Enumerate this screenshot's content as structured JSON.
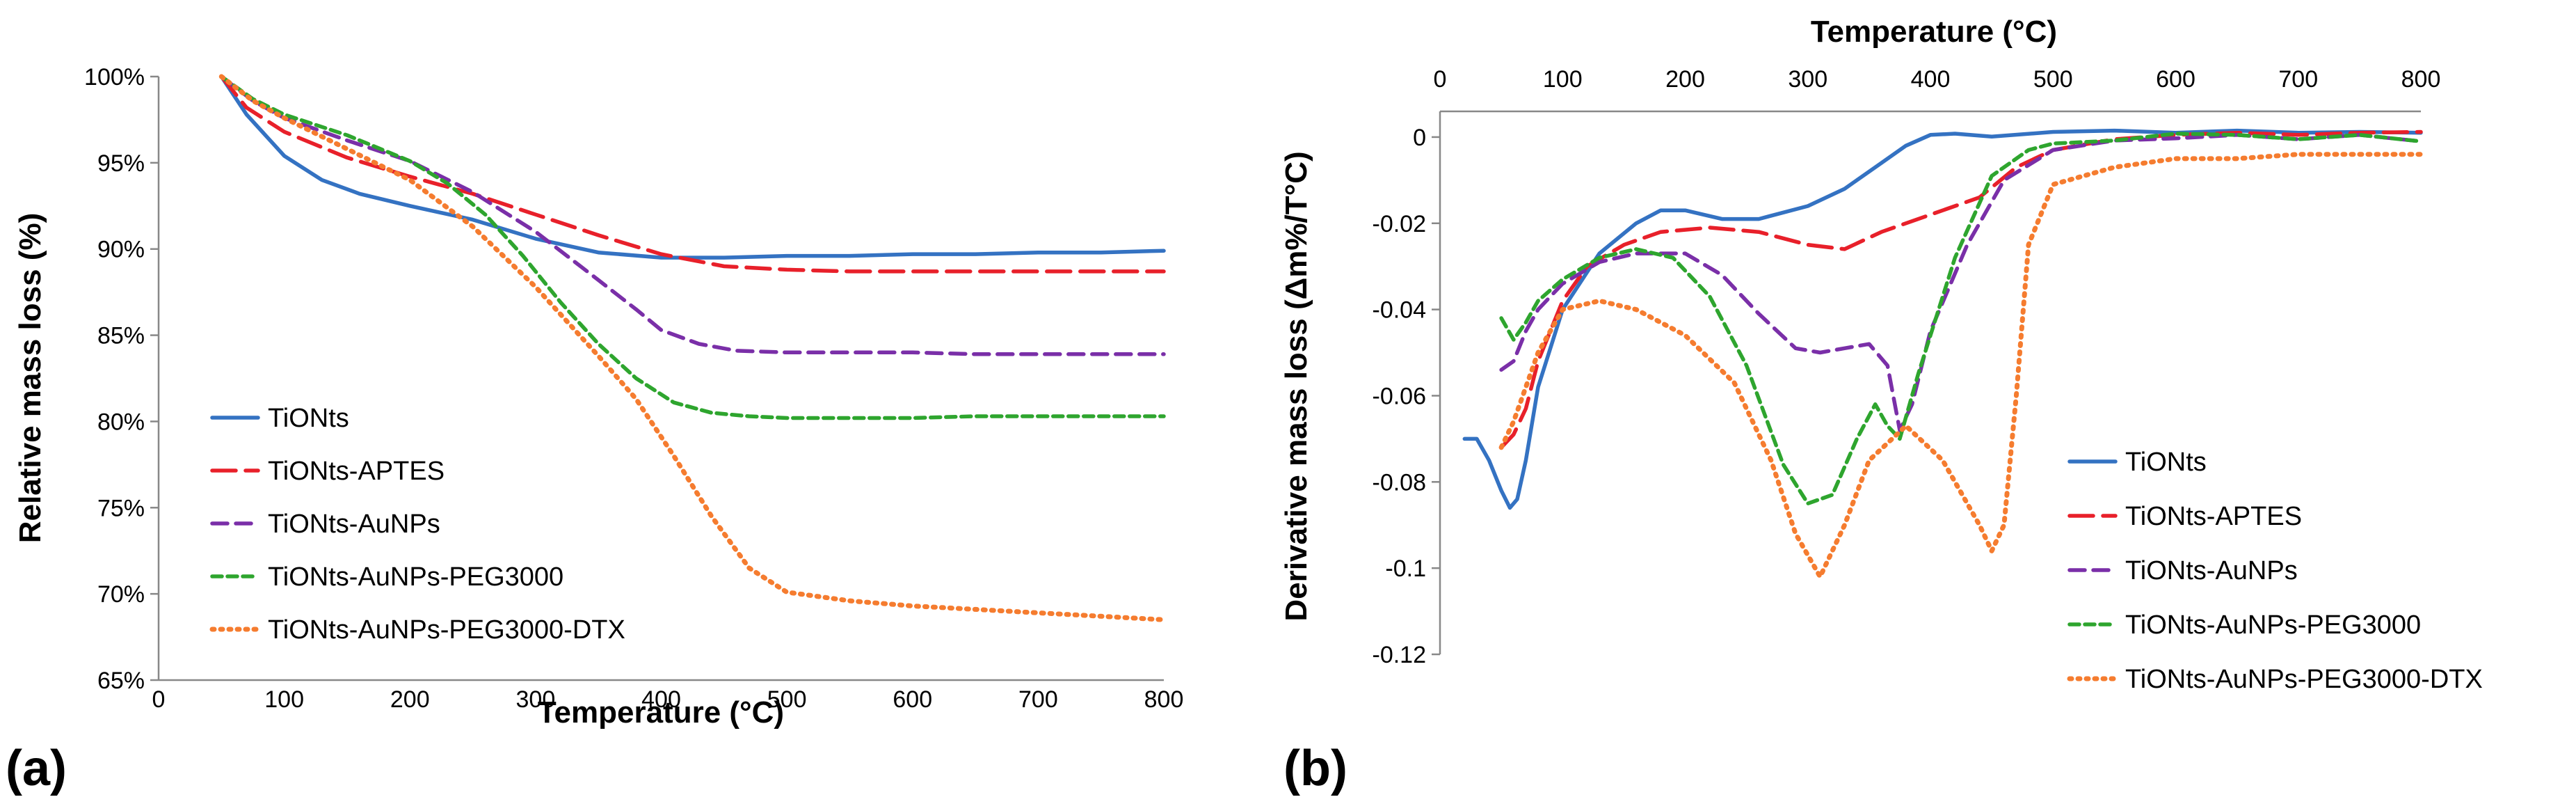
{
  "figure": {
    "panel_a_label": "(a)",
    "panel_b_label": "(b)"
  },
  "styles": {
    "TiONts": {
      "color": "#3472c2",
      "dash": "solid"
    },
    "TiONts-APTES": {
      "color": "#e8202a",
      "dash": "long-dash"
    },
    "TiONts-AuNPs": {
      "color": "#7a2fa8",
      "dash": "dash"
    },
    "TiONts-AuNPs-PEG3000": {
      "color": "#2ea52e",
      "dash": "short-dash"
    },
    "TiONts-AuNPs-PEG3000-DTX": {
      "color": "#f57c2f",
      "dash": "dot"
    }
  },
  "chart_data": [
    {
      "type": "line",
      "panel": "(a)",
      "title": "",
      "xlabel": "Temperature (°C)",
      "ylabel": "Relative mass loss (%)",
      "xlim": [
        0,
        800
      ],
      "ylim": [
        65,
        100
      ],
      "x_ticks": [
        "0",
        "100",
        "200",
        "300",
        "400",
        "500",
        "600",
        "700",
        "800"
      ],
      "y_ticks": [
        "65%",
        "70%",
        "75%",
        "80%",
        "85%",
        "90%",
        "95%",
        "100%"
      ],
      "grid": false,
      "legend_position": "bottom-left",
      "series": [
        {
          "name": "TiONts",
          "x": [
            50,
            70,
            100,
            130,
            160,
            200,
            250,
            300,
            350,
            400,
            450,
            500,
            550,
            600,
            650,
            700,
            750,
            800
          ],
          "y": [
            100,
            97.8,
            95.4,
            94.0,
            93.2,
            92.5,
            91.7,
            90.6,
            89.8,
            89.5,
            89.5,
            89.6,
            89.6,
            89.7,
            89.7,
            89.8,
            89.8,
            89.9
          ]
        },
        {
          "name": "TiONts-APTES",
          "x": [
            50,
            70,
            100,
            150,
            200,
            250,
            300,
            350,
            400,
            450,
            500,
            550,
            600,
            650,
            700,
            750,
            800
          ],
          "y": [
            100,
            98.2,
            96.8,
            95.3,
            94.2,
            93.2,
            92.0,
            90.8,
            89.7,
            89.0,
            88.8,
            88.7,
            88.7,
            88.7,
            88.7,
            88.7,
            88.7
          ]
        },
        {
          "name": "TiONts-AuNPs",
          "x": [
            50,
            75,
            100,
            150,
            200,
            250,
            300,
            350,
            380,
            400,
            430,
            460,
            500,
            550,
            600,
            650,
            700,
            750,
            800
          ],
          "y": [
            100,
            98.6,
            97.6,
            96.3,
            95.1,
            93.3,
            91.0,
            88.2,
            86.5,
            85.3,
            84.5,
            84.1,
            84.0,
            84.0,
            84.0,
            83.9,
            83.9,
            83.9,
            83.9
          ]
        },
        {
          "name": "TiONts-AuNPs-PEG3000",
          "x": [
            50,
            75,
            100,
            150,
            200,
            230,
            260,
            290,
            320,
            350,
            380,
            410,
            440,
            470,
            500,
            550,
            600,
            650,
            700,
            750,
            800
          ],
          "y": [
            100,
            98.7,
            97.8,
            96.6,
            95.1,
            93.8,
            92.0,
            89.6,
            86.9,
            84.5,
            82.5,
            81.1,
            80.5,
            80.3,
            80.2,
            80.2,
            80.2,
            80.3,
            80.3,
            80.3,
            80.3
          ]
        },
        {
          "name": "TiONts-AuNPs-PEG3000-DTX",
          "x": [
            50,
            75,
            100,
            150,
            200,
            250,
            300,
            350,
            380,
            410,
            440,
            470,
            500,
            550,
            600,
            650,
            700,
            750,
            800
          ],
          "y": [
            100,
            98.6,
            97.6,
            95.8,
            94.0,
            91.3,
            87.8,
            83.8,
            81.3,
            78.0,
            74.5,
            71.5,
            70.1,
            69.6,
            69.3,
            69.1,
            68.9,
            68.7,
            68.5
          ]
        }
      ]
    },
    {
      "type": "line",
      "panel": "(b)",
      "title": "",
      "xlabel": "Temperature (°C)",
      "ylabel": "Derivative mass loss (Δm%/T°C)",
      "xlim": [
        0,
        800
      ],
      "ylim": [
        -0.12,
        0.01
      ],
      "x_axis_position": "top",
      "x_ticks": [
        "0",
        "100",
        "200",
        "300",
        "400",
        "500",
        "600",
        "700",
        "800"
      ],
      "y_ticks": [
        "0",
        "-0.02",
        "-0.04",
        "-0.06",
        "-0.08",
        "-0.1",
        "-0.12"
      ],
      "grid": false,
      "legend_position": "right",
      "series": [
        {
          "name": "TiONts",
          "x": [
            20,
            30,
            40,
            50,
            57,
            63,
            70,
            80,
            100,
            130,
            160,
            180,
            200,
            230,
            260,
            300,
            330,
            360,
            380,
            400,
            420,
            450,
            500,
            550,
            600,
            650,
            700,
            750,
            800
          ],
          "y": [
            -0.07,
            -0.07,
            -0.075,
            -0.082,
            -0.086,
            -0.084,
            -0.075,
            -0.058,
            -0.04,
            -0.027,
            -0.02,
            -0.017,
            -0.017,
            -0.019,
            -0.019,
            -0.016,
            -0.012,
            -0.006,
            -0.002,
            0.0005,
            0.0008,
            0.0001,
            0.0012,
            0.0015,
            0.001,
            0.0015,
            0.001,
            0.0012,
            0.001
          ]
        },
        {
          "name": "TiONts-APTES",
          "x": [
            50,
            60,
            70,
            80,
            100,
            120,
            150,
            180,
            220,
            260,
            300,
            330,
            360,
            400,
            440,
            470,
            500,
            550,
            600,
            650,
            700,
            750,
            800
          ],
          "y": [
            -0.072,
            -0.069,
            -0.063,
            -0.052,
            -0.038,
            -0.03,
            -0.025,
            -0.022,
            -0.021,
            -0.022,
            -0.025,
            -0.026,
            -0.022,
            -0.018,
            -0.014,
            -0.007,
            -0.003,
            -0.0005,
            0.0005,
            0.001,
            0.0005,
            0.001,
            0.0012
          ]
        },
        {
          "name": "TiONts-AuNPs",
          "x": [
            50,
            60,
            70,
            80,
            100,
            130,
            160,
            200,
            230,
            260,
            290,
            310,
            330,
            350,
            365,
            375,
            385,
            400,
            430,
            460,
            500,
            550,
            600,
            650,
            700,
            750,
            800
          ],
          "y": [
            -0.054,
            -0.052,
            -0.045,
            -0.04,
            -0.034,
            -0.029,
            -0.027,
            -0.027,
            -0.032,
            -0.041,
            -0.049,
            -0.05,
            -0.049,
            -0.048,
            -0.053,
            -0.068,
            -0.062,
            -0.045,
            -0.025,
            -0.01,
            -0.003,
            -0.0008,
            -0.0003,
            0.0005,
            -0.0005,
            0.0005,
            -0.001
          ]
        },
        {
          "name": "TiONts-AuNPs-PEG3000",
          "x": [
            50,
            60,
            70,
            80,
            100,
            130,
            160,
            190,
            220,
            250,
            280,
            300,
            320,
            340,
            355,
            365,
            375,
            390,
            420,
            450,
            480,
            500,
            550,
            600,
            650,
            700,
            750,
            800
          ],
          "y": [
            -0.042,
            -0.047,
            -0.043,
            -0.038,
            -0.033,
            -0.028,
            -0.026,
            -0.028,
            -0.037,
            -0.053,
            -0.076,
            -0.085,
            -0.083,
            -0.07,
            -0.062,
            -0.067,
            -0.07,
            -0.055,
            -0.028,
            -0.009,
            -0.003,
            -0.0015,
            -0.0008,
            0.0008,
            0.0005,
            -0.0005,
            0.0005,
            -0.001
          ]
        },
        {
          "name": "TiONts-AuNPs-PEG3000-DTX",
          "x": [
            50,
            60,
            70,
            80,
            100,
            130,
            160,
            200,
            240,
            270,
            290,
            310,
            330,
            350,
            380,
            410,
            440,
            450,
            460,
            470,
            480,
            500,
            550,
            600,
            650,
            700,
            750,
            800
          ],
          "y": [
            -0.072,
            -0.066,
            -0.058,
            -0.05,
            -0.04,
            -0.038,
            -0.04,
            -0.046,
            -0.057,
            -0.075,
            -0.092,
            -0.102,
            -0.09,
            -0.075,
            -0.067,
            -0.075,
            -0.09,
            -0.096,
            -0.09,
            -0.06,
            -0.025,
            -0.011,
            -0.007,
            -0.005,
            -0.005,
            -0.004,
            -0.004,
            -0.004
          ]
        }
      ]
    }
  ]
}
